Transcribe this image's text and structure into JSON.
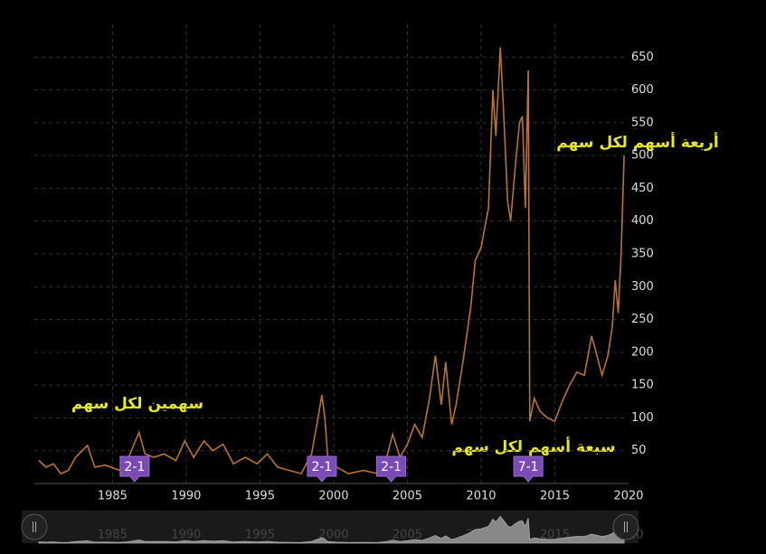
{
  "chart_data": {
    "type": "line",
    "x": [
      1980.0,
      1980.5,
      1981.0,
      1981.5,
      1982.0,
      1982.5,
      1983.3,
      1983.8,
      1984.5,
      1985.5,
      1986.0,
      1986.8,
      1987.2,
      1987.8,
      1988.5,
      1989.3,
      1989.9,
      1990.5,
      1991.2,
      1991.8,
      1992.5,
      1993.2,
      1994.0,
      1994.8,
      1995.5,
      1996.2,
      1997.0,
      1997.8,
      1998.5,
      1998.9,
      1999.2,
      1999.4,
      1999.6,
      2000.2,
      2001.0,
      2002.0,
      2003.0,
      2003.6,
      2004.0,
      2004.5,
      2005.0,
      2005.5,
      2006.0,
      2006.5,
      2006.9,
      2007.3,
      2007.6,
      2008.0,
      2008.3,
      2008.8,
      2009.3,
      2009.6,
      2010.0,
      2010.5,
      2010.8,
      2011.0,
      2011.3,
      2011.5,
      2011.8,
      2012.0,
      2012.3,
      2012.6,
      2012.8,
      2013.0,
      2013.2,
      2013.3,
      2013.6,
      2014.0,
      2014.5,
      2015.0,
      2015.5,
      2016.0,
      2016.5,
      2017.0,
      2017.5,
      2017.8,
      2018.2,
      2018.6,
      2018.9,
      2019.1,
      2019.3,
      2019.5,
      2019.7
    ],
    "series": [
      {
        "color": "#b87333",
        "values": [
          35,
          25,
          30,
          15,
          20,
          40,
          58,
          25,
          28,
          20,
          35,
          78,
          45,
          40,
          45,
          35,
          65,
          40,
          65,
          50,
          60,
          30,
          40,
          30,
          45,
          25,
          20,
          15,
          45,
          95,
          135,
          100,
          40,
          25,
          15,
          20,
          15,
          40,
          75,
          40,
          60,
          90,
          70,
          130,
          195,
          120,
          185,
          90,
          120,
          190,
          270,
          340,
          360,
          420,
          600,
          530,
          665,
          580,
          430,
          400,
          480,
          550,
          560,
          420,
          630,
          95,
          130,
          110,
          100,
          95,
          125,
          150,
          170,
          165,
          225,
          200,
          165,
          195,
          240,
          310,
          260,
          350,
          500
        ]
      }
    ],
    "xlim": [
      1979.7,
      2020
    ],
    "xticks": [
      1985,
      1990,
      1995,
      2000,
      2005,
      2010,
      2015,
      2020
    ],
    "ylim": [
      0,
      700
    ],
    "yticks": [
      50,
      100,
      150,
      200,
      250,
      300,
      350,
      400,
      450,
      500,
      550,
      600,
      650
    ],
    "grid": true,
    "splits": [
      {
        "x": 1986.5,
        "label": "2-1"
      },
      {
        "x": 1999.2,
        "label": "2-1"
      },
      {
        "x": 2003.9,
        "label": "2-1"
      },
      {
        "x": 2013.2,
        "label": "7-1"
      }
    ],
    "annotations": [
      "سهمين لكل سهم",
      "أربعة أسهم لكل سهم",
      "سبعة أسهم لكل سهم"
    ]
  }
}
